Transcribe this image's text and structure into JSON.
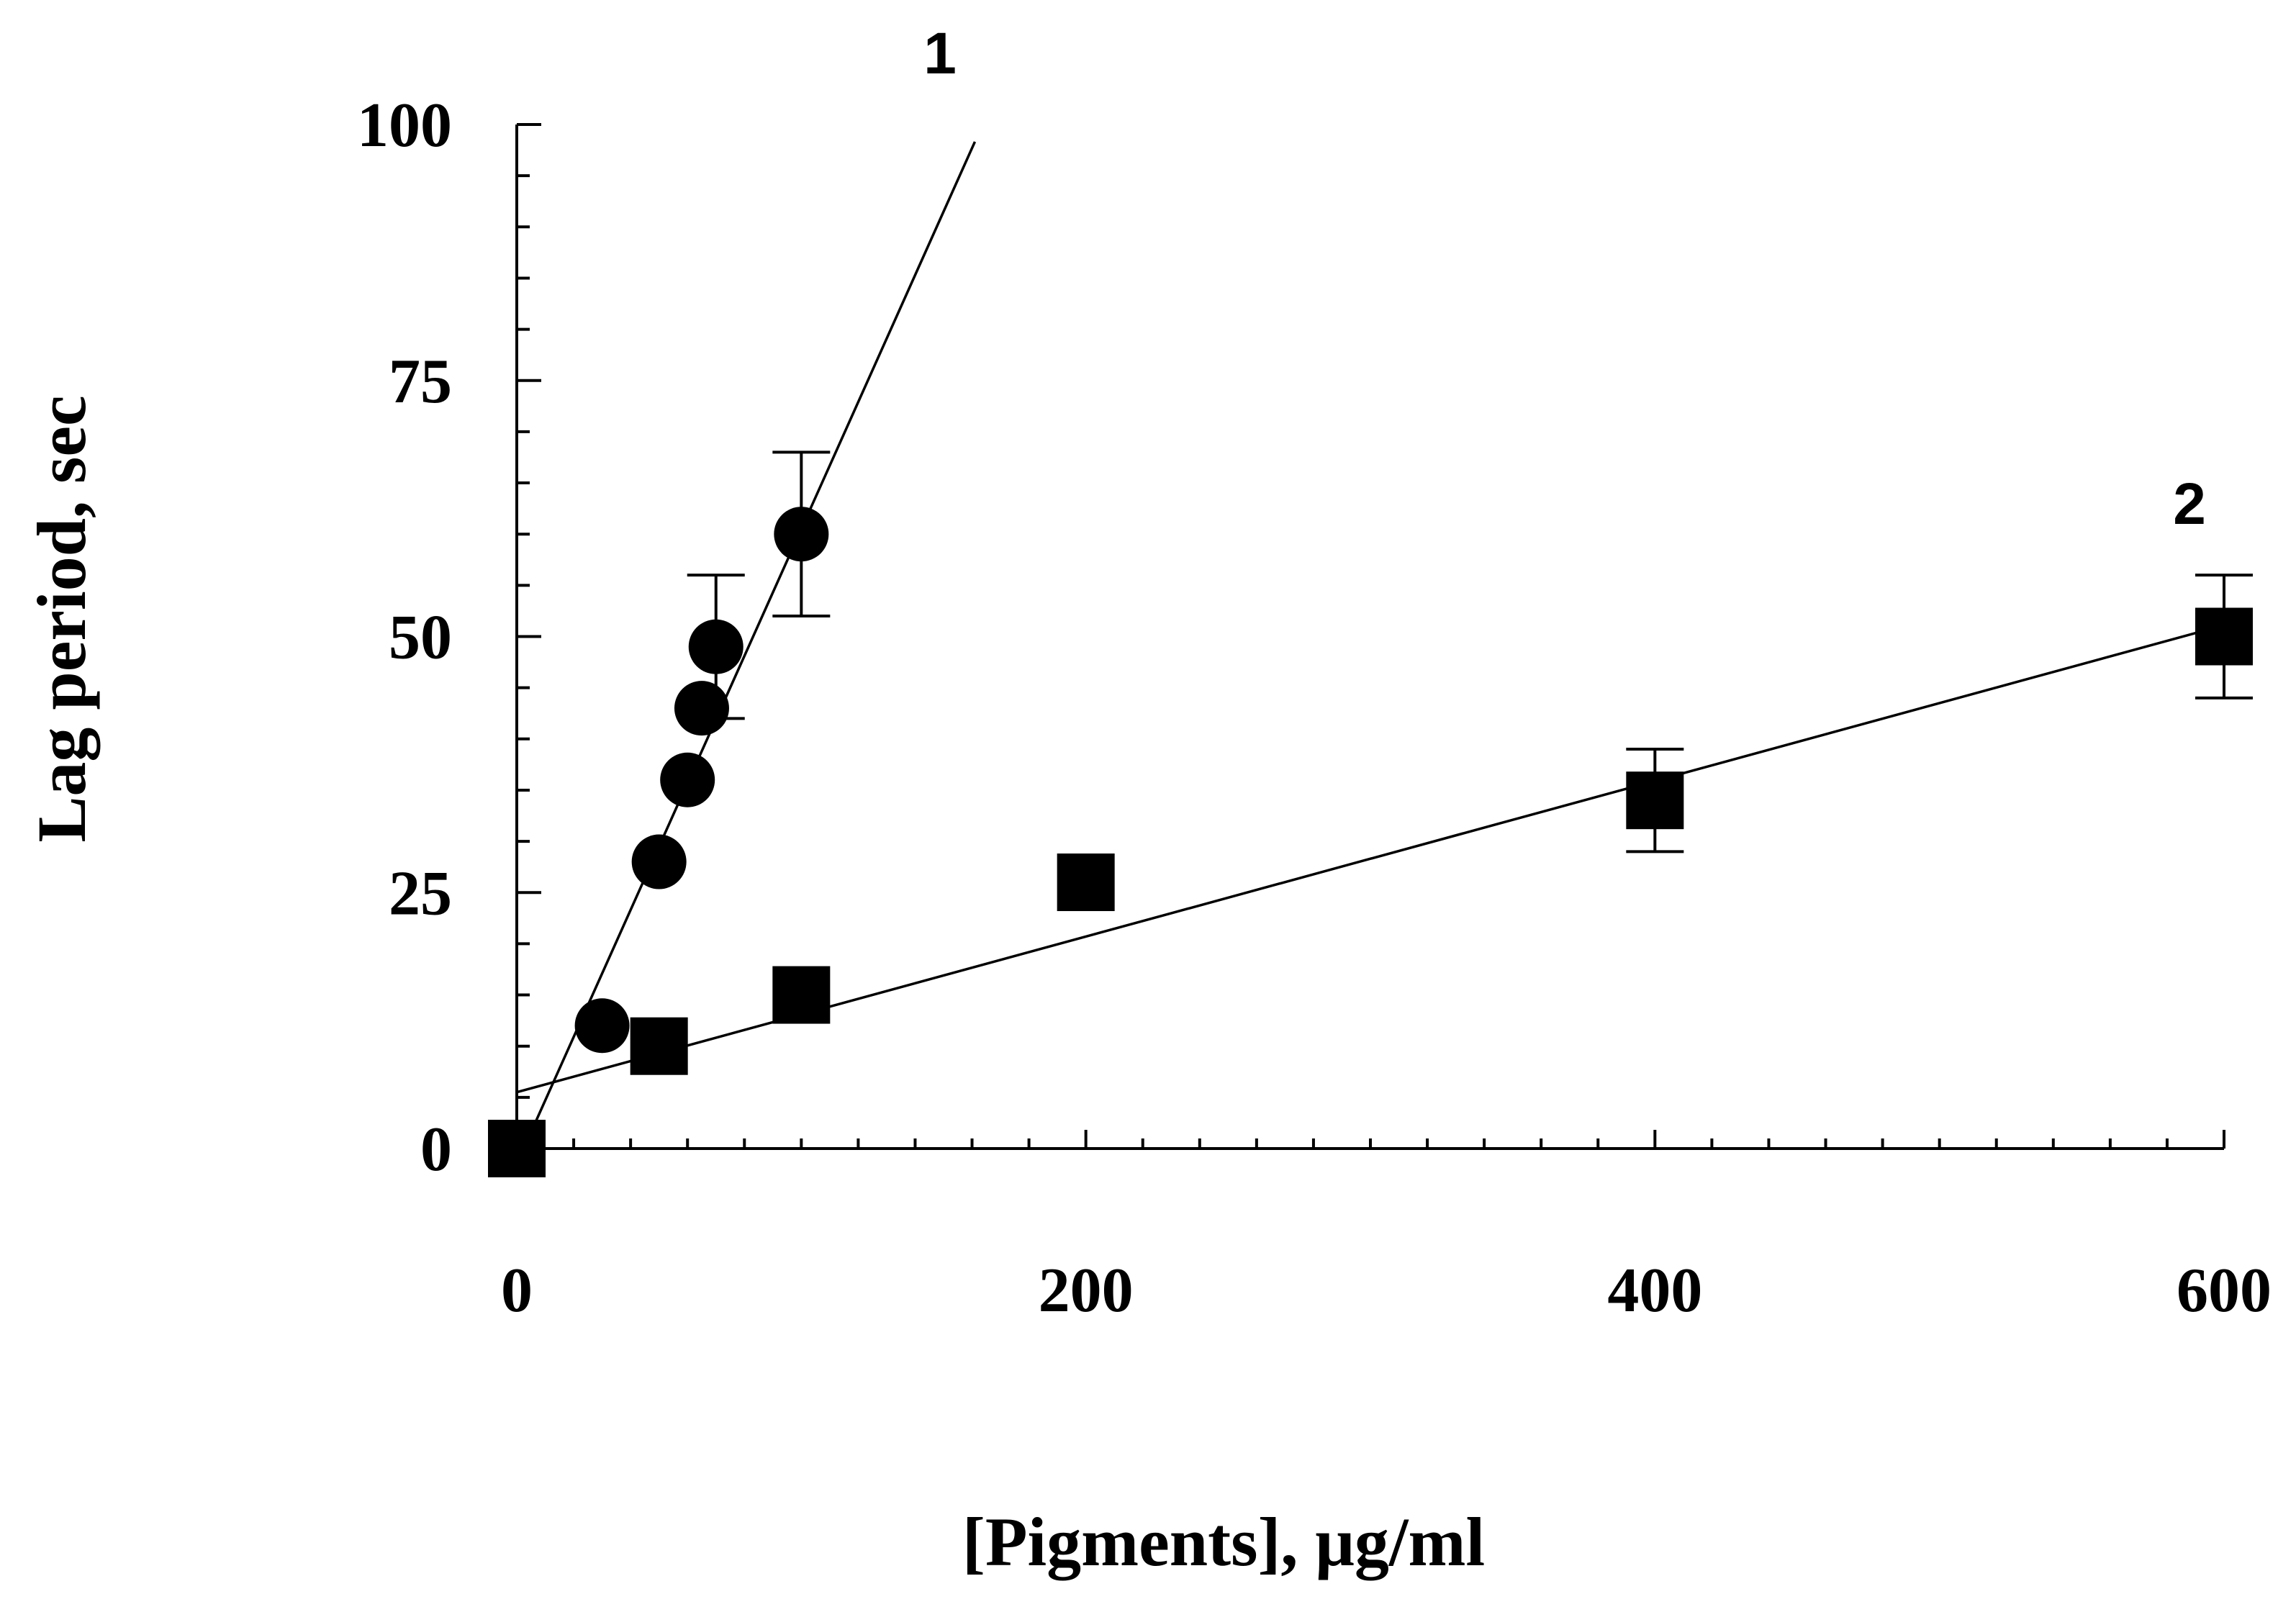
{
  "chart_data": {
    "type": "scatter",
    "title": "",
    "xlabel": "[Pigments], μg/ml",
    "ylabel": "Lag period, sec",
    "xlim": [
      0,
      600
    ],
    "ylim": [
      0,
      100
    ],
    "x_ticks": [
      0,
      200,
      400,
      600
    ],
    "y_ticks": [
      0,
      25,
      50,
      75,
      100
    ],
    "x_minor_step": 20,
    "y_minor_step": 5,
    "grid": false,
    "series": [
      {
        "name": "1",
        "marker": "circle",
        "points": [
          {
            "x": 0,
            "y": 0,
            "err": null
          },
          {
            "x": 30,
            "y": 12,
            "err": null
          },
          {
            "x": 50,
            "y": 28,
            "err": null
          },
          {
            "x": 60,
            "y": 36,
            "err": null
          },
          {
            "x": 65,
            "y": 43,
            "err": null
          },
          {
            "x": 70,
            "y": 49,
            "err": 7
          },
          {
            "x": 100,
            "y": 60,
            "err": 8
          }
        ],
        "fit": {
          "slope": 0.62,
          "intercept": -1.5,
          "x_range": [
            0,
            161
          ]
        }
      },
      {
        "name": "2",
        "marker": "square",
        "points": [
          {
            "x": 0,
            "y": 0,
            "err": null
          },
          {
            "x": 50,
            "y": 10,
            "err": null
          },
          {
            "x": 100,
            "y": 15,
            "err": null
          },
          {
            "x": 200,
            "y": 26,
            "err": null
          },
          {
            "x": 400,
            "y": 34,
            "err": 5
          },
          {
            "x": 600,
            "y": 50,
            "err": 6
          }
        ],
        "fit": {
          "slope": 0.076,
          "intercept": 5.5,
          "x_range": [
            0,
            600
          ]
        }
      }
    ]
  }
}
